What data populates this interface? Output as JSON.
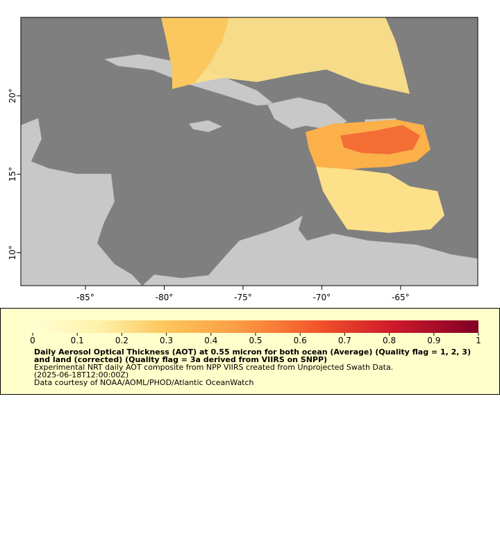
{
  "chart_data": {
    "type": "map",
    "xlim": [
      -89.1,
      -60.1
    ],
    "ylim": [
      7.9,
      25
    ],
    "xticks": [
      {
        "value": -85,
        "label": "-85°"
      },
      {
        "value": -80,
        "label": "-80°"
      },
      {
        "value": -75,
        "label": "-75°"
      },
      {
        "value": -70,
        "label": "-70°"
      },
      {
        "value": -65,
        "label": "-65°"
      }
    ],
    "yticks": [
      {
        "value": 10,
        "label": "10°"
      },
      {
        "value": 15,
        "label": "15°"
      },
      {
        "value": 20,
        "label": "20°"
      }
    ],
    "colorbar": {
      "lim": [
        0,
        1
      ],
      "ticks": [
        0,
        0.1,
        0.2,
        0.3,
        0.4,
        0.5,
        0.6,
        0.7,
        0.8,
        0.9,
        1
      ]
    },
    "legend": {
      "title": "Daily Aerosol Optical Thickness (AOT) at 0.55 micron for both ocean (Average) (Quality flag = 1, 2, 3) and land (corrected) (Quality flag = 3a derived from VIIRS on SNPP)",
      "description": "Experimental NRT daily AOT composite from NPP VIIRS created from Unprojected Swath Data.",
      "time": "(2025-06-18T12:00:00Z)",
      "credit": "Data courtesy of NOAA/AOML/PHOD/Atlantic OceanWatch"
    }
  }
}
